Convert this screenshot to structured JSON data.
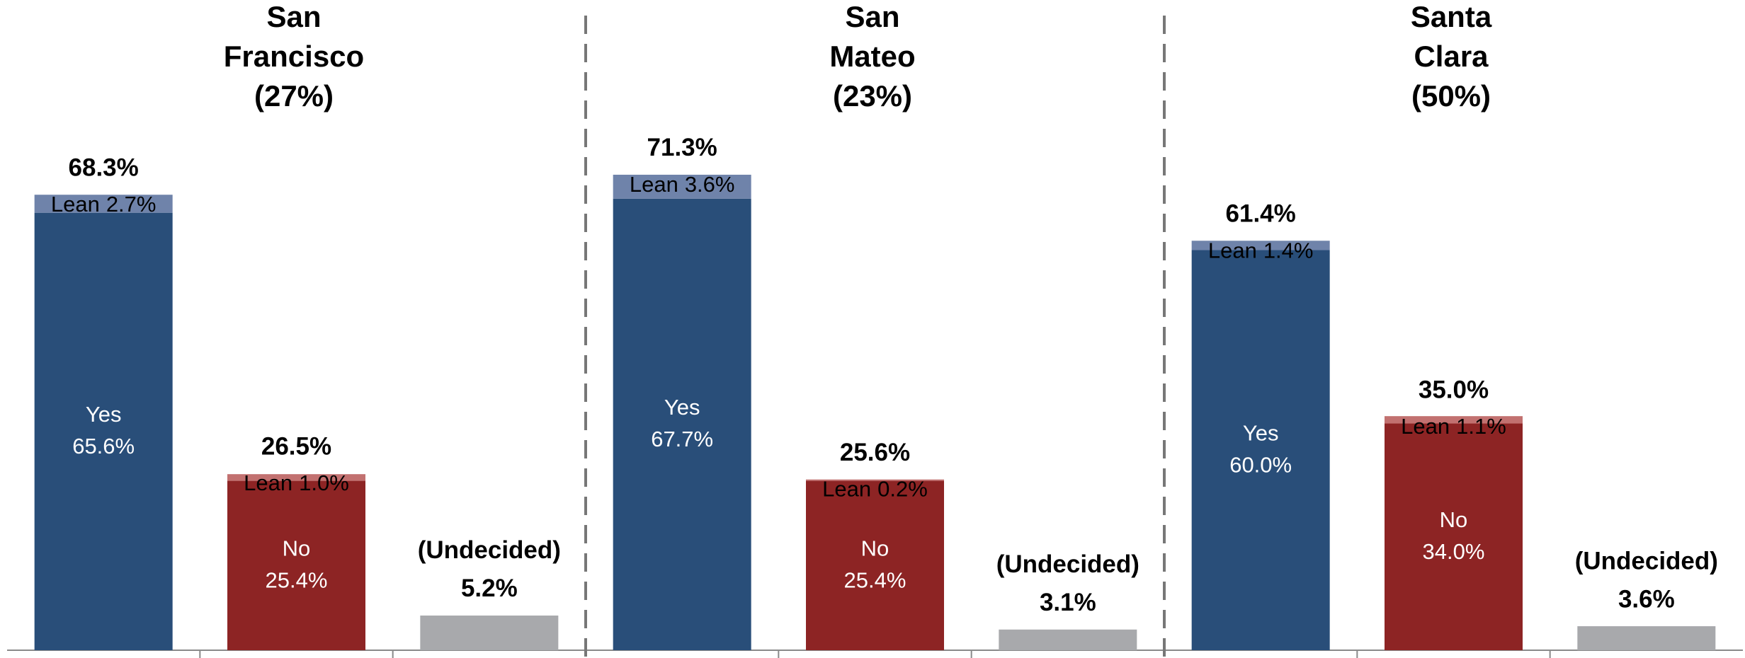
{
  "chart_data": [
    {
      "type": "bar",
      "stacked": true,
      "title": [
        "San",
        "Francisco",
        "(27%)"
      ],
      "categories": [
        "Yes",
        "No",
        "(Undecided)"
      ],
      "series": [
        {
          "values": [
            65.6,
            25.4,
            5.2
          ],
          "value_labels": [
            "65.6%",
            "25.4%",
            null
          ],
          "colors": [
            "#294e79",
            "#8d2424",
            "#a8a9ac"
          ]
        },
        {
          "name": "Lean",
          "values": [
            2.7,
            1.0,
            null
          ],
          "value_labels": [
            "2.7%",
            "1.0%",
            null
          ],
          "colors": [
            "#6f83aa",
            "#c27170",
            "#a8a9ac"
          ]
        }
      ],
      "totals": [
        68.3,
        26.5,
        5.2
      ],
      "total_labels": [
        "68.3%",
        "26.5%",
        "5.2%"
      ],
      "ylim": [
        0,
        97.5
      ]
    },
    {
      "type": "bar",
      "stacked": true,
      "title": [
        "San",
        "Mateo",
        "(23%)"
      ],
      "categories": [
        "Yes",
        "No",
        "(Undecided)"
      ],
      "series": [
        {
          "values": [
            67.7,
            25.4,
            3.1
          ],
          "value_labels": [
            "67.7%",
            "25.4%",
            null
          ],
          "colors": [
            "#294e79",
            "#8d2424",
            "#a8a9ac"
          ]
        },
        {
          "name": "Lean",
          "values": [
            3.6,
            0.2,
            null
          ],
          "value_labels": [
            "3.6%",
            "0.2%",
            null
          ],
          "colors": [
            "#6f83aa",
            "#c27170",
            "#a8a9ac"
          ]
        }
      ],
      "totals": [
        71.3,
        25.6,
        3.1
      ],
      "total_labels": [
        "71.3%",
        "25.6%",
        "3.1%"
      ],
      "ylim": [
        0,
        97.5
      ]
    },
    {
      "type": "bar",
      "stacked": true,
      "title": [
        "Santa",
        "Clara",
        "(50%)"
      ],
      "categories": [
        "Yes",
        "No",
        "(Undecided)"
      ],
      "series": [
        {
          "values": [
            60.0,
            34.0,
            3.6
          ],
          "value_labels": [
            "60.0%",
            "34.0%",
            null
          ],
          "colors": [
            "#294e79",
            "#8d2424",
            "#a8a9ac"
          ]
        },
        {
          "name": "Lean",
          "values": [
            1.4,
            1.1,
            null
          ],
          "value_labels": [
            "1.4%",
            "1.1%",
            null
          ],
          "colors": [
            "#6f83aa",
            "#c27170",
            "#a8a9ac"
          ]
        }
      ],
      "totals": [
        61.4,
        35.0,
        3.6
      ],
      "total_labels": [
        "61.4%",
        "35.0%",
        "3.6%"
      ],
      "ylim": [
        0,
        97.5
      ]
    }
  ]
}
